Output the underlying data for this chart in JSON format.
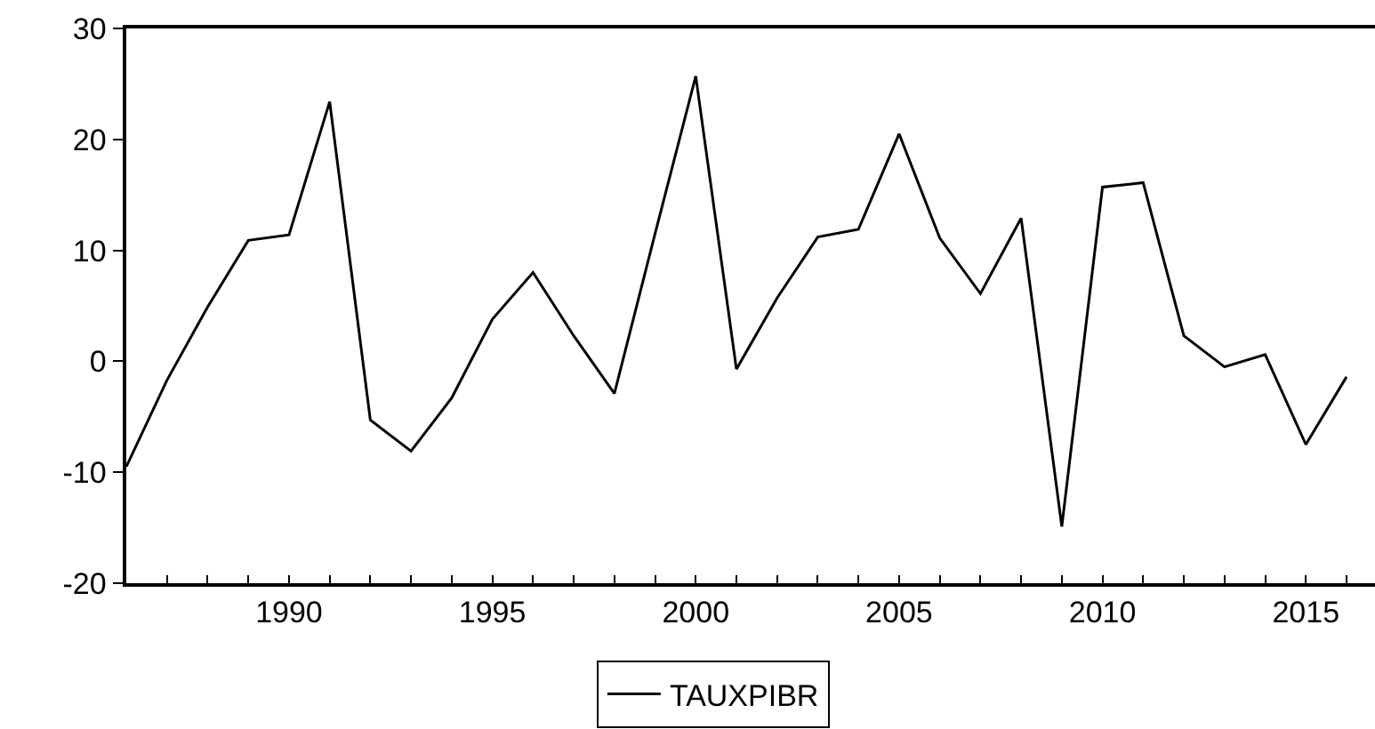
{
  "chart_data": {
    "type": "line",
    "x": [
      1986,
      1987,
      1988,
      1989,
      1990,
      1991,
      1992,
      1993,
      1994,
      1995,
      1996,
      1997,
      1998,
      1999,
      2000,
      2001,
      2002,
      2003,
      2004,
      2005,
      2006,
      2007,
      2008,
      2009,
      2010,
      2011,
      2012,
      2013,
      2014,
      2015,
      2016
    ],
    "series": [
      {
        "name": "TAUXPIBR",
        "color": "#000000",
        "values": [
          -9.5,
          -1.7,
          4.9,
          10.9,
          11.4,
          23.4,
          -5.3,
          -8.1,
          -3.3,
          3.8,
          8.0,
          2.3,
          -2.9,
          11.5,
          25.7,
          -0.7,
          5.7,
          11.2,
          11.9,
          20.5,
          11.1,
          6.1,
          12.9,
          -14.9,
          15.7,
          16.1,
          2.3,
          -0.5,
          0.6,
          -7.5,
          -1.4
        ]
      }
    ],
    "xlim": [
      1986,
      2016.7
    ],
    "xticks": [
      {
        "value": 1986,
        "label": null
      },
      {
        "value": 1987,
        "label": null
      },
      {
        "value": 1988,
        "label": null
      },
      {
        "value": 1989,
        "label": null
      },
      1990,
      {
        "value": 1991,
        "label": null
      },
      {
        "value": 1992,
        "label": null
      },
      {
        "value": 1993,
        "label": null
      },
      {
        "value": 1994,
        "label": null
      },
      1995,
      {
        "value": 1996,
        "label": null
      },
      {
        "value": 1997,
        "label": null
      },
      {
        "value": 1998,
        "label": null
      },
      {
        "value": 1999,
        "label": null
      },
      2000,
      {
        "value": 2001,
        "label": null
      },
      {
        "value": 2002,
        "label": null
      },
      {
        "value": 2003,
        "label": null
      },
      {
        "value": 2004,
        "label": null
      },
      2005,
      {
        "value": 2006,
        "label": null
      },
      {
        "value": 2007,
        "label": null
      },
      {
        "value": 2008,
        "label": null
      },
      {
        "value": 2009,
        "label": null
      },
      2010,
      {
        "value": 2011,
        "label": null
      },
      {
        "value": 2012,
        "label": null
      },
      {
        "value": 2013,
        "label": null
      },
      {
        "value": 2014,
        "label": null
      },
      2015,
      {
        "value": 2016,
        "label": null
      }
    ],
    "ylim": [
      -20,
      30
    ],
    "yticks": [
      -20,
      -10,
      0,
      10,
      20,
      30
    ],
    "legend": "bottom",
    "marker": "none",
    "line_style": "solid"
  }
}
